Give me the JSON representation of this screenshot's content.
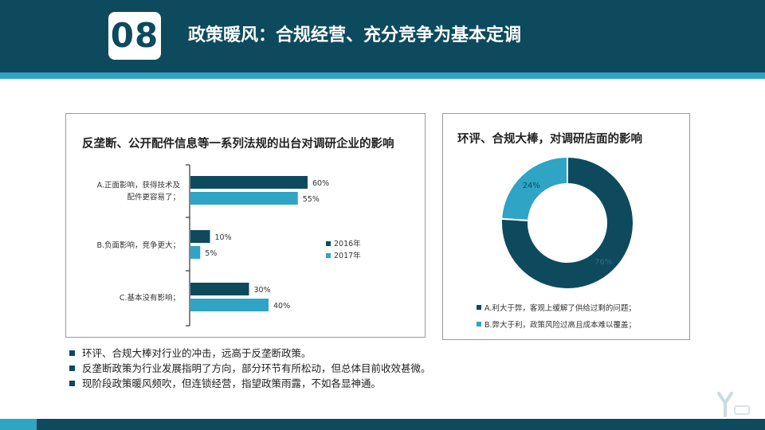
{
  "header": {
    "number": "08",
    "title": "政策暖风：合规经营、充分竞争为基本定调"
  },
  "colors": {
    "dark": "#0d4a5e",
    "light": "#2fa4c4"
  },
  "chart_data": [
    {
      "type": "bar",
      "orientation": "horizontal",
      "title": "反垄断、公开配件信息等一系列法规的出台对调研企业的影响",
      "categories": [
        "A.正面影响，获得技术及配件更容易了；",
        "B.负面影响，竞争更大；",
        "C.基本没有影响；"
      ],
      "category_lines": [
        [
          "A.正面影响，获得技术及",
          "配件更容易了；"
        ],
        [
          "B.负面影响，竞争更大；"
        ],
        [
          "C.基本没有影响；"
        ]
      ],
      "series": [
        {
          "name": "2016年",
          "values": [
            60,
            10,
            30
          ],
          "labels": [
            "60%",
            "10%",
            "30%"
          ],
          "color": "#0d4a5e"
        },
        {
          "name": "2017年",
          "values": [
            55,
            5,
            40
          ],
          "labels": [
            "55%",
            "5%",
            "40%"
          ],
          "color": "#2fa4c4"
        }
      ],
      "unit": "%",
      "legend": "right"
    },
    {
      "type": "pie",
      "donut": true,
      "title": "环评、合规大棒，对调研店面的影响",
      "categories": [
        "A.利大于弊，客观上缓解了供给过剩的问题；",
        "B.弊大于利，政策风险过高且成本难以覆盖；"
      ],
      "values": [
        76,
        24
      ],
      "labels": [
        "76%",
        "24%"
      ],
      "colors": [
        "#0d4a5e",
        "#2fa4c4"
      ],
      "legend": "bottom"
    }
  ],
  "bullets": [
    "环评、合规大棒对行业的冲击，远高于反垄断政策。",
    "反垄断政策为行业发展指明了方向，部分环节有所松动，但总体目前收效甚微。",
    "现阶段政策暖风频吹，但连锁经营，指望政策雨露，不如各显神通。"
  ]
}
